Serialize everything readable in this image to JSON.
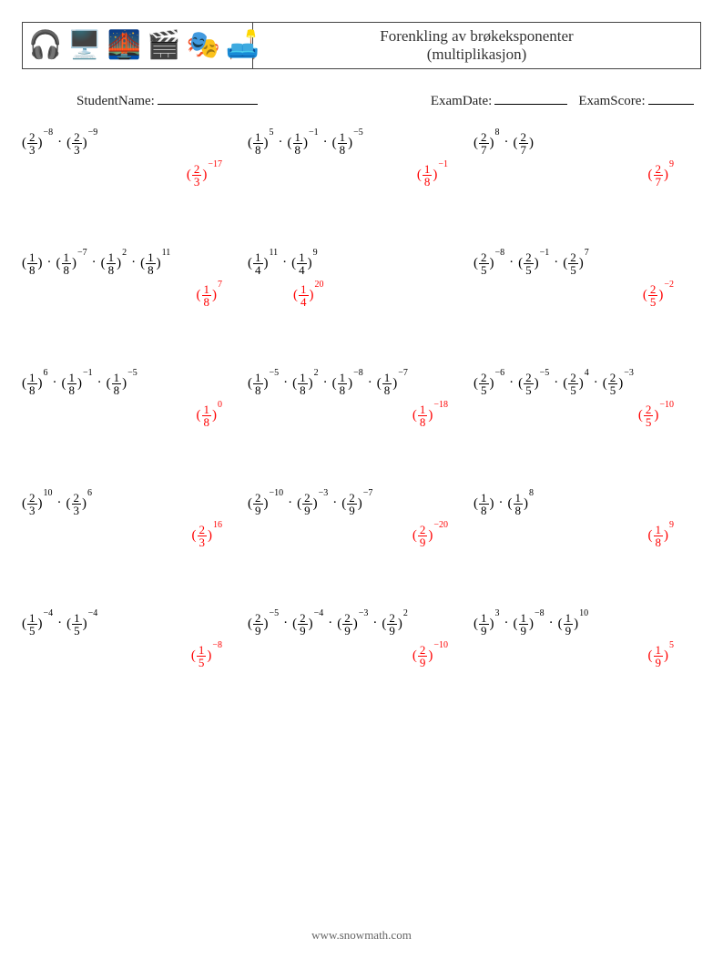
{
  "header": {
    "icons": [
      "🎧",
      "🖥️",
      "🌉",
      "🎬",
      "🎭",
      "🛋️"
    ],
    "title_line1": "Forenkling av brøkeksponenter",
    "title_line2": "(multiplikasjon)"
  },
  "info": {
    "student_label": "StudentName:",
    "student_blank_width": 110,
    "date_label": "ExamDate:",
    "date_blank_width": 80,
    "score_label": "ExamScore:",
    "score_blank_width": 50,
    "gap1": 60,
    "gap2": 190,
    "gap3": 12
  },
  "dot": "·",
  "colors": {
    "text": "#000000",
    "answer": "#ff0000",
    "border": "#444444",
    "footer": "#666666"
  },
  "problems": [
    [
      {
        "w1": 248,
        "w2": 248,
        "w3": 248,
        "c1": {
          "terms": [
            {
              "n": "2",
              "d": "3",
              "e": "-8"
            },
            {
              "n": "2",
              "d": "3",
              "e": "-9"
            }
          ],
          "ans": {
            "n": "2",
            "d": "3",
            "e": "-17"
          }
        },
        "c2": {
          "terms": [
            {
              "n": "1",
              "d": "8",
              "e": "5"
            },
            {
              "n": "1",
              "d": "8",
              "e": "-1"
            },
            {
              "n": "1",
              "d": "8",
              "e": "-5"
            }
          ],
          "ans": {
            "n": "1",
            "d": "8",
            "e": "-1"
          }
        },
        "c3": {
          "terms": [
            {
              "n": "2",
              "d": "7",
              "e": "8"
            },
            {
              "n": "2",
              "d": "7",
              "e": ""
            }
          ],
          "ans": {
            "n": "2",
            "d": "7",
            "e": "9"
          }
        }
      }
    ],
    [
      {
        "w1": 248,
        "w2": 248,
        "w3": 248,
        "c1": {
          "terms": [
            {
              "n": "1",
              "d": "8",
              "e": ""
            },
            {
              "n": "1",
              "d": "8",
              "e": "-7"
            },
            {
              "n": "1",
              "d": "8",
              "e": "2"
            },
            {
              "n": "1",
              "d": "8",
              "e": "11"
            }
          ],
          "ans": {
            "n": "1",
            "d": "8",
            "e": "7"
          }
        },
        "c2": {
          "terms": [
            {
              "n": "1",
              "d": "4",
              "e": "11"
            },
            {
              "n": "1",
              "d": "4",
              "e": "9"
            }
          ],
          "ans": {
            "n": "1",
            "d": "4",
            "e": "20"
          },
          "center": true
        },
        "c3": {
          "terms": [
            {
              "n": "2",
              "d": "5",
              "e": "-8"
            },
            {
              "n": "2",
              "d": "5",
              "e": "-1"
            },
            {
              "n": "2",
              "d": "5",
              "e": "7"
            }
          ],
          "ans": {
            "n": "2",
            "d": "5",
            "e": "-2"
          }
        }
      }
    ],
    [
      {
        "w1": 248,
        "w2": 248,
        "w3": 248,
        "c1": {
          "terms": [
            {
              "n": "1",
              "d": "8",
              "e": "6"
            },
            {
              "n": "1",
              "d": "8",
              "e": "-1"
            },
            {
              "n": "1",
              "d": "8",
              "e": "-5"
            }
          ],
          "ans": {
            "n": "1",
            "d": "8",
            "e": "0"
          }
        },
        "c2": {
          "terms": [
            {
              "n": "1",
              "d": "8",
              "e": "-5"
            },
            {
              "n": "1",
              "d": "8",
              "e": "2"
            },
            {
              "n": "1",
              "d": "8",
              "e": "-8"
            },
            {
              "n": "1",
              "d": "8",
              "e": "-7"
            }
          ],
          "ans": {
            "n": "1",
            "d": "8",
            "e": "-18"
          }
        },
        "c3": {
          "terms": [
            {
              "n": "2",
              "d": "5",
              "e": "-6"
            },
            {
              "n": "2",
              "d": "5",
              "e": "-5"
            },
            {
              "n": "2",
              "d": "5",
              "e": "4"
            },
            {
              "n": "2",
              "d": "5",
              "e": "-3"
            }
          ],
          "ans": {
            "n": "2",
            "d": "5",
            "e": "-10"
          }
        }
      }
    ],
    [
      {
        "w1": 248,
        "w2": 248,
        "w3": 248,
        "c1": {
          "terms": [
            {
              "n": "2",
              "d": "3",
              "e": "10"
            },
            {
              "n": "2",
              "d": "3",
              "e": "6"
            }
          ],
          "ans": {
            "n": "2",
            "d": "3",
            "e": "16"
          }
        },
        "c2": {
          "terms": [
            {
              "n": "2",
              "d": "9",
              "e": "-10"
            },
            {
              "n": "2",
              "d": "9",
              "e": "-3"
            },
            {
              "n": "2",
              "d": "9",
              "e": "-7"
            }
          ],
          "ans": {
            "n": "2",
            "d": "9",
            "e": "-20"
          }
        },
        "c3": {
          "terms": [
            {
              "n": "1",
              "d": "8",
              "e": ""
            },
            {
              "n": "1",
              "d": "8",
              "e": "8"
            }
          ],
          "ans": {
            "n": "1",
            "d": "8",
            "e": "9"
          }
        }
      }
    ],
    [
      {
        "w1": 248,
        "w2": 248,
        "w3": 248,
        "c1": {
          "terms": [
            {
              "n": "1",
              "d": "5",
              "e": "-4"
            },
            {
              "n": "1",
              "d": "5",
              "e": "-4"
            }
          ],
          "ans": {
            "n": "1",
            "d": "5",
            "e": "-8"
          }
        },
        "c2": {
          "terms": [
            {
              "n": "2",
              "d": "9",
              "e": "-5"
            },
            {
              "n": "2",
              "d": "9",
              "e": "-4"
            },
            {
              "n": "2",
              "d": "9",
              "e": "-3"
            },
            {
              "n": "2",
              "d": "9",
              "e": "2"
            }
          ],
          "ans": {
            "n": "2",
            "d": "9",
            "e": "-10"
          }
        },
        "c3": {
          "terms": [
            {
              "n": "1",
              "d": "9",
              "e": "3"
            },
            {
              "n": "1",
              "d": "9",
              "e": "-8"
            },
            {
              "n": "1",
              "d": "9",
              "e": "10"
            }
          ],
          "ans": {
            "n": "1",
            "d": "9",
            "e": "5"
          }
        }
      }
    ]
  ],
  "footer": "www.snowmath.com"
}
